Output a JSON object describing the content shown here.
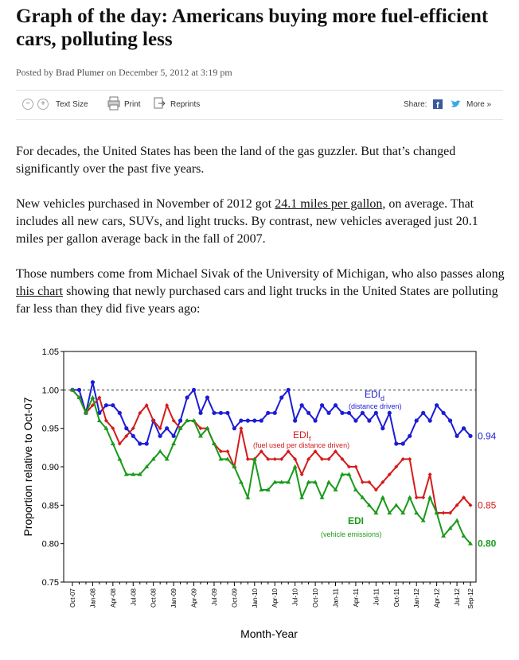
{
  "header": {
    "title": "Graph of the day: Americans buying more fuel-efficient cars, polluting less",
    "byline": {
      "prefix": "Posted by",
      "author": "Brad Plumer",
      "on": "on December 5, 2012 at",
      "time": "3:19 pm"
    }
  },
  "toolbar": {
    "text_size": "Text Size",
    "print": "Print",
    "reprints": "Reprints",
    "share": "Share:",
    "more": "More »"
  },
  "body": {
    "paragraphs": [
      {
        "text": "For decades, the United States has been the land of the gas guzzler. But that’s changed significantly over the past five years."
      },
      {
        "before": "New vehicles purchased in November of 2012 got ",
        "link": "24.1 miles per gallon",
        "after": ", on average. That includes all new cars, SUVs, and light trucks. By contrast, new vehicles averaged just 20.1 miles per gallon average back in the fall of 2007."
      },
      {
        "before": "Those numbers come from Michael Sivak of the University of Michigan, who also passes along ",
        "link": "this chart",
        "after": " showing that newly purchased cars and light trucks in the United States are polluting far less than they did five years ago:"
      }
    ]
  },
  "chart_data": {
    "type": "line",
    "x_label": "Month-Year",
    "y_label": "Proportion relative to Oct-07",
    "categories": [
      "Oct-07",
      null,
      null,
      "Jan-08",
      null,
      null,
      "Apr-08",
      null,
      null,
      "Jul-08",
      null,
      null,
      "Oct-08",
      null,
      null,
      "Jan-09",
      null,
      null,
      "Apr-09",
      null,
      null,
      "Jul-09",
      null,
      null,
      "Oct-09",
      null,
      null,
      "Jan-10",
      null,
      null,
      "Apr-10",
      null,
      null,
      "Jul-10",
      null,
      null,
      "Oct-10",
      null,
      null,
      "Jan-11",
      null,
      null,
      "Apr-11",
      null,
      null,
      "Jul-11",
      null,
      null,
      "Oct-11",
      null,
      null,
      "Jan-12",
      null,
      null,
      "Apr-12",
      null,
      null,
      "Jul-12",
      null,
      "Sep-12"
    ],
    "ylim": [
      0.75,
      1.05
    ],
    "yticks": [
      0.75,
      {
        "value": 0.8,
        "label": "0.80"
      },
      0.85,
      {
        "value": 0.9,
        "label": "0.90"
      },
      0.95,
      {
        "value": 1,
        "label": "1.00"
      },
      1.05
    ],
    "reference_line": 1,
    "series": [
      {
        "name": "EDI",
        "subscript": "d",
        "description": "(distance driven)",
        "color": "#1c1cd6",
        "end_label": "0.94",
        "values": [
          1.0,
          1.0,
          0.97,
          1.01,
          0.97,
          0.98,
          0.98,
          0.97,
          0.95,
          0.94,
          0.93,
          0.93,
          0.96,
          0.94,
          0.95,
          0.94,
          0.96,
          0.99,
          1.0,
          0.97,
          0.99,
          0.97,
          0.97,
          0.97,
          0.95,
          0.96,
          0.96,
          0.96,
          0.96,
          0.97,
          0.97,
          0.99,
          1.0,
          0.96,
          0.98,
          0.97,
          0.96,
          0.98,
          0.97,
          0.98,
          0.97,
          0.97,
          0.96,
          0.97,
          0.96,
          0.97,
          0.95,
          0.97,
          0.93,
          0.93,
          0.94,
          0.96,
          0.97,
          0.96,
          0.98,
          0.97,
          0.96,
          0.94,
          0.95,
          0.94
        ]
      },
      {
        "name": "EDI",
        "subscript": "f",
        "description": "(fuel used per distance driven)",
        "color": "#d41c1c",
        "end_label": "0.85",
        "values": [
          1.0,
          0.99,
          0.97,
          0.98,
          0.99,
          0.96,
          0.95,
          0.93,
          0.94,
          0.95,
          0.97,
          0.98,
          0.96,
          0.95,
          0.98,
          0.96,
          0.95,
          0.96,
          0.96,
          0.95,
          0.95,
          0.93,
          0.92,
          0.92,
          0.9,
          0.95,
          0.91,
          0.91,
          0.92,
          0.91,
          0.91,
          0.91,
          0.92,
          0.91,
          0.89,
          0.91,
          0.92,
          0.91,
          0.91,
          0.92,
          0.91,
          0.9,
          0.9,
          0.88,
          0.88,
          0.87,
          0.88,
          0.89,
          0.9,
          0.91,
          0.91,
          0.86,
          0.86,
          0.89,
          0.84,
          0.84,
          0.84,
          0.85,
          0.86,
          0.85
        ]
      },
      {
        "name": "EDI",
        "description": "(vehicle emissions)",
        "color": "#1a9a1a",
        "end_label": "0.80",
        "values": [
          1.0,
          0.99,
          0.97,
          0.99,
          0.96,
          0.95,
          0.93,
          0.91,
          0.89,
          0.89,
          0.89,
          0.9,
          0.91,
          0.92,
          0.91,
          0.93,
          0.95,
          0.96,
          0.96,
          0.94,
          0.95,
          0.93,
          0.91,
          0.91,
          0.9,
          0.88,
          0.86,
          0.91,
          0.87,
          0.87,
          0.88,
          0.88,
          0.88,
          0.9,
          0.86,
          0.88,
          0.88,
          0.86,
          0.88,
          0.87,
          0.89,
          0.89,
          0.87,
          0.86,
          0.85,
          0.84,
          0.86,
          0.84,
          0.85,
          0.84,
          0.86,
          0.84,
          0.83,
          0.86,
          0.84,
          0.81,
          0.82,
          0.83,
          0.81,
          0.8
        ]
      }
    ]
  }
}
